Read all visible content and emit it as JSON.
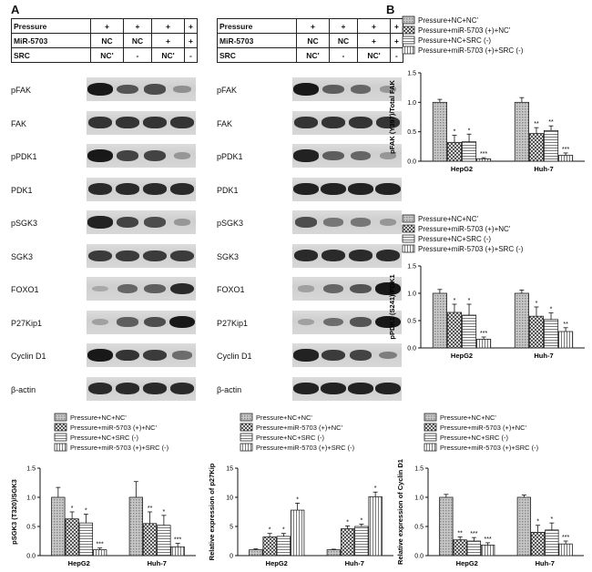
{
  "panel_labels": {
    "a": "A",
    "b": "B"
  },
  "blots": [
    {
      "conditions": {
        "header_labels": [
          "Pressure",
          "MiR-5703",
          "SRC"
        ],
        "rows": [
          [
            "+",
            "+",
            "+",
            "+"
          ],
          [
            "NC",
            "NC",
            "+",
            "+"
          ],
          [
            "NC'",
            "-",
            "NC'",
            "-"
          ]
        ]
      },
      "proteins": [
        {
          "label": "pFAK",
          "levels": [
            0.95,
            0.6,
            0.65,
            0.25
          ]
        },
        {
          "label": "FAK",
          "levels": [
            0.8,
            0.8,
            0.8,
            0.8
          ]
        },
        {
          "label": "pPDK1",
          "levels": [
            0.95,
            0.7,
            0.7,
            0.2
          ]
        },
        {
          "label": "PDK1",
          "levels": [
            0.85,
            0.85,
            0.85,
            0.85
          ]
        },
        {
          "label": "pSGK3",
          "levels": [
            0.9,
            0.7,
            0.65,
            0.2
          ]
        },
        {
          "label": "SGK3",
          "levels": [
            0.75,
            0.75,
            0.75,
            0.75
          ]
        },
        {
          "label": "FOXO1",
          "levels": [
            0.1,
            0.5,
            0.55,
            0.85
          ]
        },
        {
          "label": "P27Kip1",
          "levels": [
            0.15,
            0.55,
            0.65,
            0.95
          ]
        },
        {
          "label": "Cyclin D1",
          "levels": [
            0.95,
            0.8,
            0.75,
            0.45
          ]
        },
        {
          "label": "β-actin",
          "levels": [
            0.85,
            0.85,
            0.85,
            0.85
          ]
        }
      ]
    },
    {
      "conditions": {
        "header_labels": [
          "Pressure",
          "MiR-5703",
          "SRC"
        ],
        "rows": [
          [
            "+",
            "+",
            "+",
            "+"
          ],
          [
            "NC",
            "NC",
            "+",
            "+"
          ],
          [
            "NC'",
            "-",
            "NC'",
            "-"
          ]
        ]
      },
      "proteins": [
        {
          "label": "pFAK",
          "levels": [
            0.95,
            0.55,
            0.5,
            0.2
          ]
        },
        {
          "label": "FAK",
          "levels": [
            0.8,
            0.8,
            0.8,
            0.8
          ]
        },
        {
          "label": "pPDK1",
          "levels": [
            0.9,
            0.55,
            0.5,
            0.2
          ]
        },
        {
          "label": "PDK1",
          "levels": [
            0.9,
            0.9,
            0.9,
            0.9
          ]
        },
        {
          "label": "pSGK3",
          "levels": [
            0.65,
            0.4,
            0.4,
            0.2
          ]
        },
        {
          "label": "SGK3",
          "levels": [
            0.85,
            0.85,
            0.85,
            0.85
          ]
        },
        {
          "label": "FOXO1",
          "levels": [
            0.15,
            0.5,
            0.6,
            0.95
          ]
        },
        {
          "label": "P27Kip1",
          "levels": [
            0.15,
            0.45,
            0.6,
            0.95
          ]
        },
        {
          "label": "Cyclin D1",
          "levels": [
            0.9,
            0.75,
            0.7,
            0.35
          ]
        },
        {
          "label": "β-actin",
          "levels": [
            0.9,
            0.9,
            0.9,
            0.9
          ]
        }
      ]
    }
  ],
  "legend": [
    "Pressure+NC+NC'",
    "Pressure+miR-5703 (+)+NC'",
    "Pressure+NC+SRC (-)",
    "Pressure+miR-5703 (+)+SRC (-)"
  ],
  "chart_data": [
    {
      "type": "bar",
      "ylabel": "pFAK (Y397)/Total FAK",
      "categories": [
        "HepG2",
        "Huh-7"
      ],
      "ylim": [
        0,
        1.5
      ],
      "yticks": [
        "0.0",
        "0.5",
        "1.0",
        "1.5"
      ],
      "series": [
        {
          "name": "Pressure+NC+NC'",
          "values": [
            1.0,
            1.0
          ],
          "errors": [
            0.05,
            0.08
          ],
          "labels": [
            "",
            ""
          ]
        },
        {
          "name": "Pressure+miR-5703 (+)+NC'",
          "values": [
            0.32,
            0.47
          ],
          "errors": [
            0.12,
            0.1
          ],
          "labels": [
            "*",
            "**"
          ]
        },
        {
          "name": "Pressure+NC+SRC (-)",
          "values": [
            0.33,
            0.52
          ],
          "errors": [
            0.13,
            0.08
          ],
          "labels": [
            "*",
            "**"
          ]
        },
        {
          "name": "Pressure+miR-5703 (+)+SRC (-)",
          "values": [
            0.04,
            0.1
          ],
          "errors": [
            0.02,
            0.04
          ],
          "labels": [
            "***",
            "***"
          ]
        }
      ]
    },
    {
      "type": "bar",
      "ylabel": "pPDK1 (S241)/PDK1",
      "categories": [
        "HepG2",
        "Huh-7"
      ],
      "ylim": [
        0,
        1.5
      ],
      "yticks": [
        "0.0",
        "0.5",
        "1.0",
        "1.5"
      ],
      "series": [
        {
          "name": "Pressure+NC+NC'",
          "values": [
            1.0,
            1.0
          ],
          "errors": [
            0.07,
            0.06
          ],
          "labels": [
            "",
            ""
          ]
        },
        {
          "name": "Pressure+miR-5703 (+)+NC'",
          "values": [
            0.65,
            0.58
          ],
          "errors": [
            0.15,
            0.17
          ],
          "labels": [
            "*",
            "*"
          ]
        },
        {
          "name": "Pressure+NC+SRC (-)",
          "values": [
            0.6,
            0.52
          ],
          "errors": [
            0.2,
            0.12
          ],
          "labels": [
            "*",
            "*"
          ]
        },
        {
          "name": "Pressure+miR-5703 (+)+SRC (-)",
          "values": [
            0.16,
            0.3
          ],
          "errors": [
            0.04,
            0.07
          ],
          "labels": [
            "***",
            "**"
          ]
        }
      ]
    },
    {
      "type": "bar",
      "ylabel": "pSGK3 (T320)/SGK3",
      "categories": [
        "HepG2",
        "Huh-7"
      ],
      "ylim": [
        0,
        1.5
      ],
      "yticks": [
        "0.0",
        "0.5",
        "1.0",
        "1.5"
      ],
      "series": [
        {
          "name": "Pressure+NC+NC'",
          "values": [
            1.0,
            1.0
          ],
          "errors": [
            0.17,
            0.27
          ],
          "labels": [
            "",
            ""
          ]
        },
        {
          "name": "Pressure+miR-5703 (+)+NC'",
          "values": [
            0.63,
            0.55
          ],
          "errors": [
            0.12,
            0.2
          ],
          "labels": [
            "*",
            "**"
          ]
        },
        {
          "name": "Pressure+NC+SRC (-)",
          "values": [
            0.56,
            0.52
          ],
          "errors": [
            0.15,
            0.17
          ],
          "labels": [
            "*",
            "*"
          ]
        },
        {
          "name": "Pressure+miR-5703 (+)+SRC (-)",
          "values": [
            0.1,
            0.15
          ],
          "errors": [
            0.03,
            0.06
          ],
          "labels": [
            "***",
            "***"
          ]
        }
      ]
    },
    {
      "type": "bar",
      "ylabel": "Relative expression of p27Kip",
      "categories": [
        "HepG2",
        "Huh-7"
      ],
      "ylim": [
        0,
        15
      ],
      "yticks": [
        "0",
        "5",
        "10",
        "15"
      ],
      "series": [
        {
          "name": "Pressure+NC+NC'",
          "values": [
            1.0,
            1.0
          ],
          "errors": [
            0.15,
            0.1
          ],
          "labels": [
            "",
            ""
          ]
        },
        {
          "name": "Pressure+miR-5703 (+)+NC'",
          "values": [
            3.2,
            4.6
          ],
          "errors": [
            0.6,
            0.5
          ],
          "labels": [
            "*",
            "*"
          ]
        },
        {
          "name": "Pressure+NC+SRC (-)",
          "values": [
            3.3,
            5.0
          ],
          "errors": [
            0.5,
            0.4
          ],
          "labels": [
            "*",
            "*"
          ]
        },
        {
          "name": "Pressure+miR-5703 (+)+SRC (-)",
          "values": [
            7.8,
            10.1
          ],
          "errors": [
            1.2,
            0.8
          ],
          "labels": [
            "*",
            "*"
          ]
        }
      ]
    },
    {
      "type": "bar",
      "ylabel": "Relative expression of Cyclin D1",
      "categories": [
        "HepG2",
        "Huh-7"
      ],
      "ylim": [
        0,
        1.5
      ],
      "yticks": [
        "0.0",
        "0.5",
        "1.0",
        "1.5"
      ],
      "series": [
        {
          "name": "Pressure+NC+NC'",
          "values": [
            1.0,
            1.0
          ],
          "errors": [
            0.05,
            0.04
          ],
          "labels": [
            "",
            ""
          ]
        },
        {
          "name": "Pressure+miR-5703 (+)+NC'",
          "values": [
            0.27,
            0.4
          ],
          "errors": [
            0.05,
            0.12
          ],
          "labels": [
            "**",
            "*"
          ]
        },
        {
          "name": "Pressure+NC+SRC (-)",
          "values": [
            0.25,
            0.44
          ],
          "errors": [
            0.06,
            0.12
          ],
          "labels": [
            "***",
            "*"
          ]
        },
        {
          "name": "Pressure+miR-5703 (+)+SRC (-)",
          "values": [
            0.18,
            0.2
          ],
          "errors": [
            0.04,
            0.05
          ],
          "labels": [
            "***",
            "***"
          ]
        }
      ]
    }
  ],
  "colors": {
    "bar_fill": "#d9d9d9",
    "ink": "#111111",
    "blot_bg": "#d2d2d2"
  }
}
